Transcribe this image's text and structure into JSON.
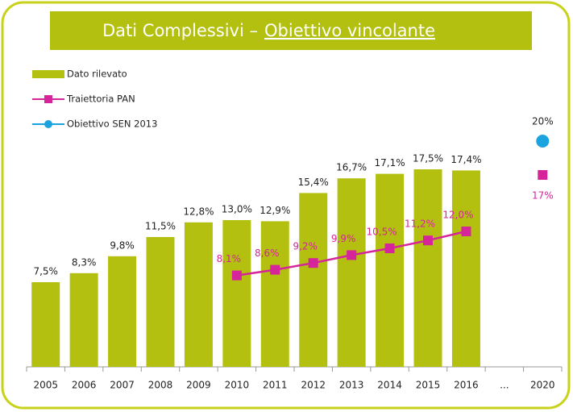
{
  "chart_data": {
    "type": "bar",
    "title": "Dati Complessivi –",
    "title_emphasis": "Obiettivo vincolante",
    "categories": [
      "2005",
      "2006",
      "2007",
      "2008",
      "2009",
      "2010",
      "2011",
      "2012",
      "2013",
      "2014",
      "2015",
      "2016",
      "...",
      "2020"
    ],
    "ylim": [
      0,
      30
    ],
    "series": [
      {
        "name": "Dato rilevato",
        "type": "bar",
        "color": "#b3c00f",
        "values": [
          7.5,
          8.3,
          9.8,
          11.5,
          12.8,
          13.0,
          12.9,
          15.4,
          16.7,
          17.1,
          17.5,
          17.4,
          null,
          null
        ],
        "value_labels": [
          "7,5%",
          "8,3%",
          "9,8%",
          "11,5%",
          "12,8%",
          "13,0%",
          "12,9%",
          "15,4%",
          "16,7%",
          "17,1%",
          "17,5%",
          "17,4%",
          null,
          null
        ]
      },
      {
        "name": "Traiettoria PAN",
        "type": "line",
        "color": "#d6249a",
        "values": [
          null,
          null,
          null,
          null,
          null,
          8.1,
          8.6,
          9.2,
          9.9,
          10.5,
          11.2,
          12.0,
          null,
          17
        ],
        "value_labels": [
          null,
          null,
          null,
          null,
          null,
          "8,1%",
          "8,6%",
          "9,2%",
          "9,9%",
          "10,5%",
          "11,2%",
          "12,0%",
          null,
          "17%"
        ]
      },
      {
        "name": "Obiettivo SEN 2013",
        "type": "scatter",
        "color": "#1ba3e0",
        "values": [
          null,
          null,
          null,
          null,
          null,
          null,
          null,
          null,
          null,
          null,
          null,
          null,
          null,
          20
        ],
        "value_labels": [
          null,
          null,
          null,
          null,
          null,
          null,
          null,
          null,
          null,
          null,
          null,
          null,
          null,
          "20%"
        ]
      }
    ]
  }
}
